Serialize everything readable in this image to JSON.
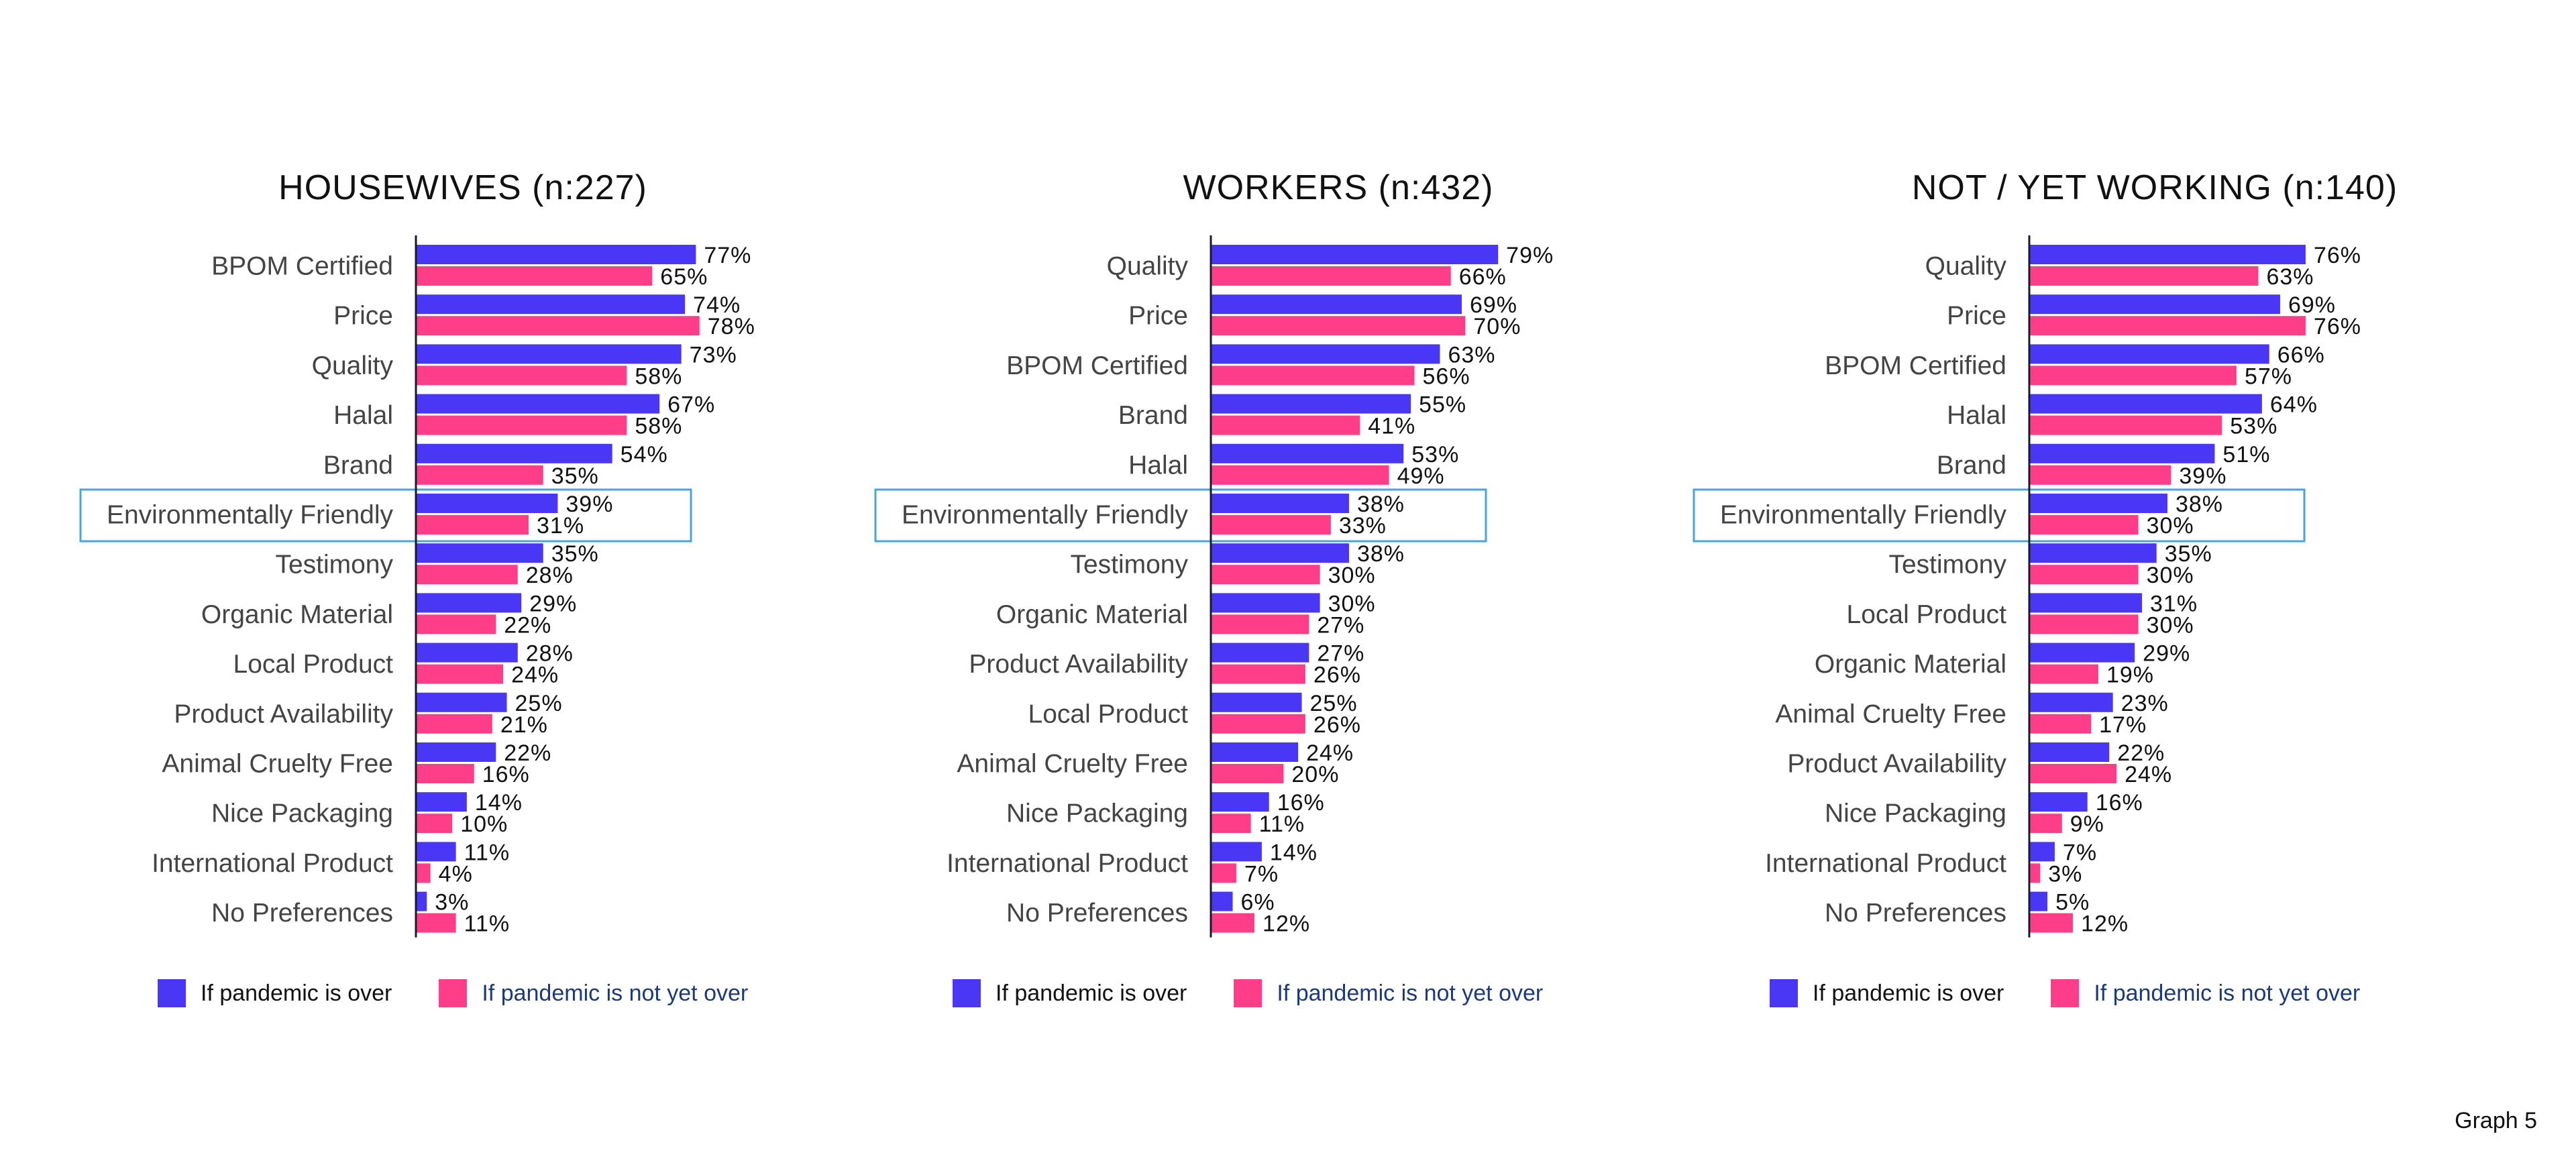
{
  "footnote": "Graph 5",
  "colors": {
    "over": "#4a36f5",
    "not_over": "#ff3d88",
    "highlight_box": "#4aa3df",
    "category_text": "#444444",
    "legend_not_over_text": "#1a3a7a"
  },
  "legend": {
    "over": "If pandemic is over",
    "not_over": "If pandemic is not yet over"
  },
  "highlight_category": "Environmentally Friendly",
  "chart_data": [
    {
      "type": "bar",
      "orientation": "horizontal",
      "title": "HOUSEWIVES (n:227)",
      "value_suffix": "%",
      "xlim": [
        0,
        100
      ],
      "categories": [
        "BPOM Certified",
        "Price",
        "Quality",
        "Halal",
        "Brand",
        "Environmentally Friendly",
        "Testimony",
        "Organic Material",
        "Local Product",
        "Product Availability",
        "Animal Cruelty Free",
        "Nice Packaging",
        "International Product",
        "No Preferences"
      ],
      "series": [
        {
          "name": "If pandemic is over",
          "values": [
            77,
            74,
            73,
            67,
            54,
            39,
            35,
            29,
            28,
            25,
            22,
            14,
            11,
            3
          ]
        },
        {
          "name": "If pandemic is not yet over",
          "values": [
            65,
            78,
            58,
            58,
            35,
            31,
            28,
            22,
            24,
            21,
            16,
            10,
            4,
            11
          ]
        }
      ]
    },
    {
      "type": "bar",
      "orientation": "horizontal",
      "title": "WORKERS (n:432)",
      "value_suffix": "%",
      "xlim": [
        0,
        100
      ],
      "categories": [
        "Quality",
        "Price",
        "BPOM Certified",
        "Brand",
        "Halal",
        "Environmentally Friendly",
        "Testimony",
        "Organic Material",
        "Product Availability",
        "Local Product",
        "Animal Cruelty Free",
        "Nice Packaging",
        "International Product",
        "No Preferences"
      ],
      "series": [
        {
          "name": "If pandemic is over",
          "values": [
            79,
            69,
            63,
            55,
            53,
            38,
            38,
            30,
            27,
            25,
            24,
            16,
            14,
            6
          ]
        },
        {
          "name": "If pandemic is not yet over",
          "values": [
            66,
            70,
            56,
            41,
            49,
            33,
            30,
            27,
            26,
            26,
            20,
            11,
            7,
            12
          ]
        }
      ]
    },
    {
      "type": "bar",
      "orientation": "horizontal",
      "title": "NOT / YET WORKING (n:140)",
      "value_suffix": "%",
      "xlim": [
        0,
        100
      ],
      "categories": [
        "Quality",
        "Price",
        "BPOM Certified",
        "Halal",
        "Brand",
        "Environmentally Friendly",
        "Testimony",
        "Local Product",
        "Organic Material",
        "Animal Cruelty Free",
        "Product Availability",
        "Nice Packaging",
        "International Product",
        "No Preferences"
      ],
      "series": [
        {
          "name": "If pandemic is over",
          "values": [
            76,
            69,
            66,
            64,
            51,
            38,
            35,
            31,
            29,
            23,
            22,
            16,
            7,
            5
          ]
        },
        {
          "name": "If pandemic is not yet over",
          "values": [
            63,
            76,
            57,
            53,
            39,
            30,
            30,
            30,
            19,
            17,
            24,
            9,
            3,
            12
          ]
        }
      ]
    }
  ]
}
